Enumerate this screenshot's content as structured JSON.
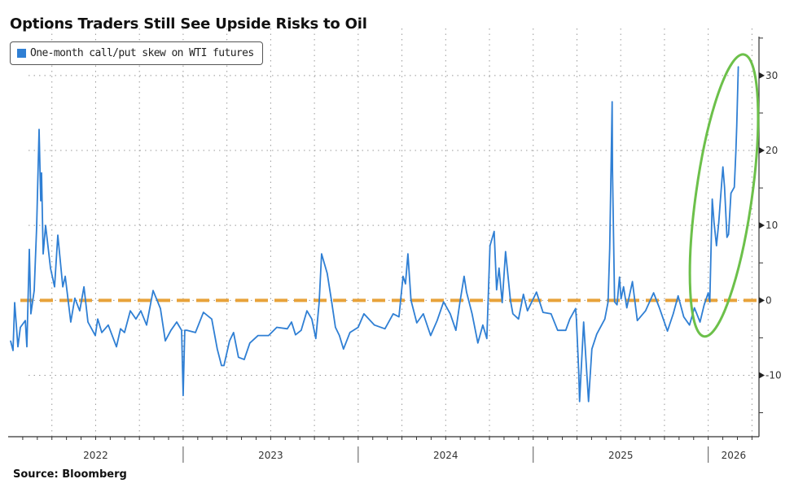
{
  "chart_data": {
    "type": "line",
    "title": "Options Traders Still See Upside Risks to Oil",
    "source": "Source: Bloomberg",
    "xlabel": "",
    "ylabel": "",
    "x_ticks": [
      "2022",
      "2023",
      "2024",
      "2025",
      "2026"
    ],
    "xlim": [
      2022.0,
      2026.29
    ],
    "y_ticks": [
      30,
      20,
      10,
      0,
      -10
    ],
    "ylim": [
      -18.2,
      35.2
    ],
    "y_axis_side": "right",
    "grid": true,
    "legend_placement": "top-left",
    "reference_line": {
      "y": 0,
      "style": "dashed",
      "color": "#E8A23A"
    },
    "annotation": {
      "shape": "ellipse",
      "color": "#6CC04A",
      "center": [
        2026.09,
        14
      ],
      "x_radius_years": 0.16,
      "y_radius": 19
    },
    "series": [
      {
        "name": "One-month call/put skew on WTI futures",
        "color": "#2F7FD4",
        "points": [
          [
            2022.014,
            -5.4
          ],
          [
            2022.028,
            -6.7
          ],
          [
            2022.037,
            -0.3
          ],
          [
            2022.056,
            -6.2
          ],
          [
            2022.07,
            -3.6
          ],
          [
            2022.098,
            -2.7
          ],
          [
            2022.107,
            -6.2
          ],
          [
            2022.121,
            6.8
          ],
          [
            2022.13,
            -1.8
          ],
          [
            2022.149,
            1.3
          ],
          [
            2022.163,
            9.8
          ],
          [
            2022.177,
            22.8
          ],
          [
            2022.186,
            13.3
          ],
          [
            2022.191,
            17.0
          ],
          [
            2022.2,
            6.2
          ],
          [
            2022.214,
            10.0
          ],
          [
            2022.242,
            4.3
          ],
          [
            2022.265,
            1.8
          ],
          [
            2022.284,
            8.7
          ],
          [
            2022.312,
            1.8
          ],
          [
            2022.326,
            3.2
          ],
          [
            2022.358,
            -2.9
          ],
          [
            2022.381,
            0.3
          ],
          [
            2022.409,
            -1.4
          ],
          [
            2022.433,
            1.8
          ],
          [
            2022.456,
            -2.9
          ],
          [
            2022.498,
            -4.7
          ],
          [
            2022.512,
            -2.5
          ],
          [
            2022.535,
            -4.3
          ],
          [
            2022.572,
            -3.3
          ],
          [
            2022.619,
            -6.2
          ],
          [
            2022.642,
            -3.8
          ],
          [
            2022.665,
            -4.3
          ],
          [
            2022.698,
            -1.4
          ],
          [
            2022.73,
            -2.5
          ],
          [
            2022.758,
            -1.4
          ],
          [
            2022.791,
            -3.3
          ],
          [
            2022.828,
            1.3
          ],
          [
            2022.87,
            -1.1
          ],
          [
            2022.898,
            -5.4
          ],
          [
            2022.93,
            -4.0
          ],
          [
            2022.963,
            -2.9
          ],
          [
            2022.991,
            -4.0
          ],
          [
            2023.0,
            -12.7
          ],
          [
            2023.009,
            -4.0
          ],
          [
            2023.023,
            -4.0
          ],
          [
            2023.07,
            -4.3
          ],
          [
            2023.116,
            -1.6
          ],
          [
            2023.163,
            -2.5
          ],
          [
            2023.195,
            -6.5
          ],
          [
            2023.219,
            -8.7
          ],
          [
            2023.233,
            -8.7
          ],
          [
            2023.265,
            -5.4
          ],
          [
            2023.288,
            -4.3
          ],
          [
            2023.316,
            -7.6
          ],
          [
            2023.349,
            -7.9
          ],
          [
            2023.381,
            -5.7
          ],
          [
            2023.428,
            -4.7
          ],
          [
            2023.488,
            -4.7
          ],
          [
            2023.535,
            -3.6
          ],
          [
            2023.595,
            -3.8
          ],
          [
            2023.619,
            -2.9
          ],
          [
            2023.642,
            -4.6
          ],
          [
            2023.674,
            -4.0
          ],
          [
            2023.707,
            -1.4
          ],
          [
            2023.735,
            -2.5
          ],
          [
            2023.758,
            -5.1
          ],
          [
            2023.777,
            -0.3
          ],
          [
            2023.791,
            6.2
          ],
          [
            2023.823,
            3.6
          ],
          [
            2023.847,
            0.0
          ],
          [
            2023.87,
            -3.6
          ],
          [
            2023.893,
            -4.7
          ],
          [
            2023.916,
            -6.5
          ],
          [
            2023.953,
            -4.3
          ],
          [
            2024.0,
            -3.6
          ],
          [
            2024.033,
            -1.8
          ],
          [
            2024.093,
            -3.3
          ],
          [
            2024.153,
            -3.8
          ],
          [
            2024.2,
            -1.8
          ],
          [
            2024.233,
            -2.2
          ],
          [
            2024.256,
            3.2
          ],
          [
            2024.27,
            2.2
          ],
          [
            2024.284,
            6.2
          ],
          [
            2024.302,
            0.0
          ],
          [
            2024.335,
            -3.0
          ],
          [
            2024.372,
            -1.8
          ],
          [
            2024.414,
            -4.7
          ],
          [
            2024.451,
            -2.7
          ],
          [
            2024.488,
            -0.2
          ],
          [
            2024.526,
            -1.8
          ],
          [
            2024.558,
            -4.0
          ],
          [
            2024.581,
            -0.3
          ],
          [
            2024.605,
            3.2
          ],
          [
            2024.619,
            1.1
          ],
          [
            2024.651,
            -1.8
          ],
          [
            2024.684,
            -5.7
          ],
          [
            2024.712,
            -3.3
          ],
          [
            2024.735,
            -5.1
          ],
          [
            2024.753,
            7.3
          ],
          [
            2024.777,
            9.2
          ],
          [
            2024.791,
            1.4
          ],
          [
            2024.805,
            4.3
          ],
          [
            2024.823,
            -0.3
          ],
          [
            2024.842,
            6.5
          ],
          [
            2024.87,
            0.0
          ],
          [
            2024.884,
            -1.8
          ],
          [
            2024.916,
            -2.5
          ],
          [
            2024.944,
            0.8
          ],
          [
            2024.967,
            -1.4
          ],
          [
            2025.019,
            1.1
          ],
          [
            2025.056,
            -1.6
          ],
          [
            2025.102,
            -1.8
          ],
          [
            2025.14,
            -4.0
          ],
          [
            2025.186,
            -4.0
          ],
          [
            2025.209,
            -2.5
          ],
          [
            2025.242,
            -1.1
          ],
          [
            2025.247,
            -2.5
          ],
          [
            2025.26,
            -9.4
          ],
          [
            2025.265,
            -13.5
          ],
          [
            2025.288,
            -2.9
          ],
          [
            2025.316,
            -13.5
          ],
          [
            2025.335,
            -6.5
          ],
          [
            2025.363,
            -4.5
          ],
          [
            2025.409,
            -2.5
          ],
          [
            2025.428,
            -0.2
          ],
          [
            2025.437,
            6.9
          ],
          [
            2025.451,
            26.5
          ],
          [
            2025.453,
            17.5
          ],
          [
            2025.456,
            12.7
          ],
          [
            2025.465,
            -0.2
          ],
          [
            2025.479,
            -0.6
          ],
          [
            2025.493,
            3.1
          ],
          [
            2025.502,
            0.2
          ],
          [
            2025.516,
            1.8
          ],
          [
            2025.535,
            -1.0
          ],
          [
            2025.567,
            2.5
          ],
          [
            2025.595,
            -2.7
          ],
          [
            2025.642,
            -1.4
          ],
          [
            2025.688,
            1.0
          ],
          [
            2025.721,
            -1.0
          ],
          [
            2025.767,
            -4.1
          ],
          [
            2025.8,
            -1.8
          ],
          [
            2025.828,
            0.6
          ],
          [
            2025.86,
            -2.2
          ],
          [
            2025.893,
            -3.3
          ],
          [
            2025.921,
            -1.0
          ],
          [
            2025.953,
            -2.9
          ],
          [
            2025.977,
            -0.6
          ],
          [
            2026.0,
            1.0
          ],
          [
            2026.009,
            -0.2
          ],
          [
            2026.023,
            13.5
          ],
          [
            2026.033,
            10.4
          ],
          [
            2026.047,
            7.3
          ],
          [
            2026.06,
            10.4
          ],
          [
            2026.07,
            13.5
          ],
          [
            2026.084,
            17.8
          ],
          [
            2026.093,
            15.1
          ],
          [
            2026.107,
            8.4
          ],
          [
            2026.116,
            8.8
          ],
          [
            2026.13,
            14.3
          ],
          [
            2026.149,
            15.1
          ],
          [
            2026.158,
            19.8
          ],
          [
            2026.163,
            23.3
          ],
          [
            2026.172,
            31.2
          ]
        ]
      }
    ]
  }
}
